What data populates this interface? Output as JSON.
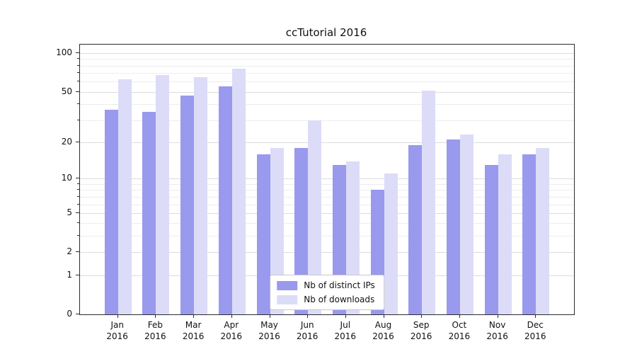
{
  "chart_data": {
    "type": "bar",
    "title": "ccTutorial 2016",
    "xlabel": "",
    "ylabel": "",
    "year": "2016",
    "categories": [
      "Jan",
      "Feb",
      "Mar",
      "Apr",
      "May",
      "Jun",
      "Jul",
      "Aug",
      "Sep",
      "Oct",
      "Nov",
      "Dec"
    ],
    "series": [
      {
        "name": "Nb of distinct IPs",
        "color": "#9999ee",
        "values": [
          36,
          35,
          47,
          55,
          16,
          18,
          13,
          8,
          19,
          21,
          13,
          16
        ]
      },
      {
        "name": "Nb of downloads",
        "color": "#dcdcf8",
        "values": [
          63,
          68,
          65,
          76,
          18,
          30,
          14,
          11,
          51,
          23,
          16,
          18
        ]
      }
    ],
    "y_scale": "log1p",
    "y_ticks": [
      0,
      1,
      2,
      5,
      10,
      20,
      50,
      100
    ],
    "y_minor_ticks": [
      3,
      4,
      6,
      7,
      8,
      9,
      30,
      40,
      60,
      70,
      80,
      90
    ],
    "y_axis_max": 116.5,
    "grid": true,
    "legend_position": "bottom-center"
  }
}
